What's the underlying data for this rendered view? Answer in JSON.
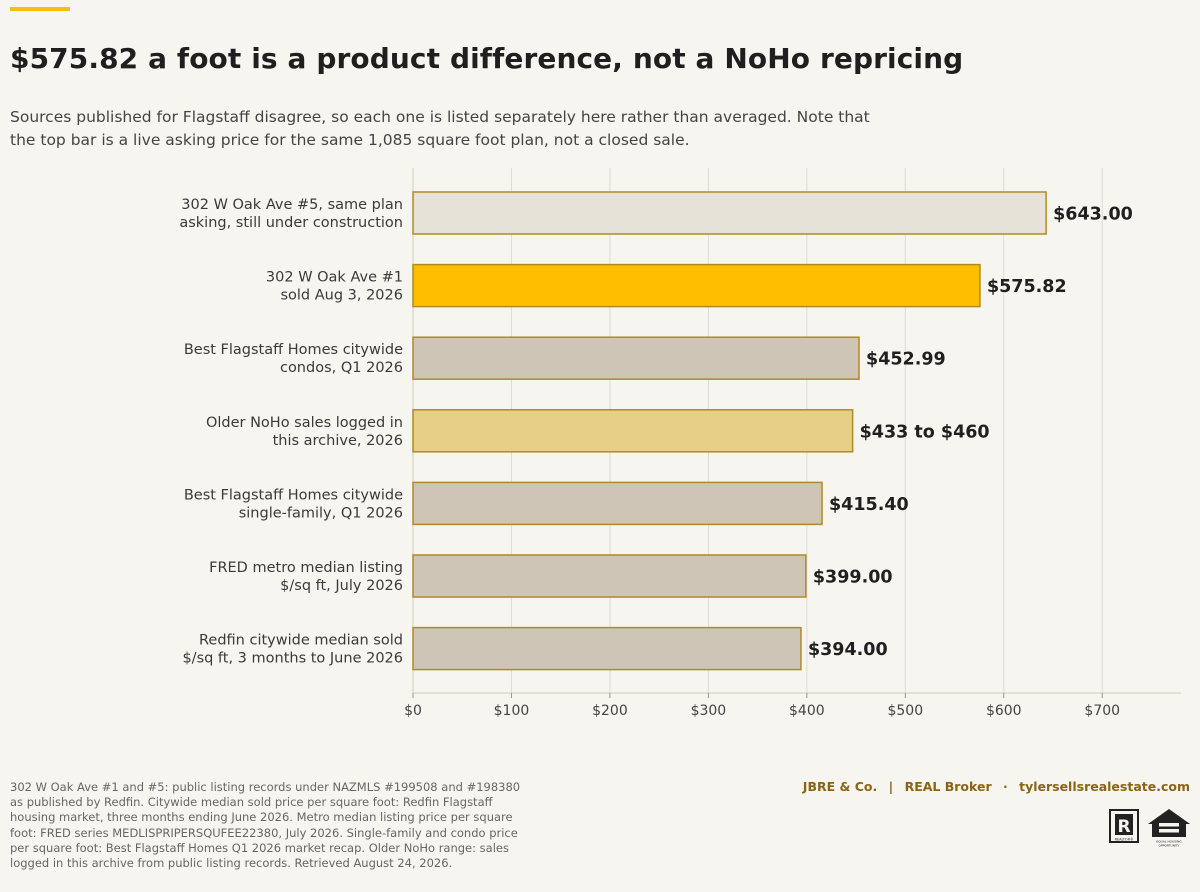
{
  "header": {
    "title": "$575.82 a foot is a product difference, not a NoHo repricing",
    "subtitle": "Sources published for Flagstaff disagree, so each one is listed separately here rather than averaged. Note that the top bar is a live asking price for the same 1,085 square foot plan, not a closed sale."
  },
  "chart_data": {
    "type": "bar",
    "orientation": "horizontal",
    "categories": [
      [
        "302 W Oak Ave #5, same plan",
        "asking, still under construction"
      ],
      [
        "302 W Oak Ave #1",
        "sold Aug 3, 2026"
      ],
      [
        "Best Flagstaff Homes citywide",
        "condos, Q1 2026"
      ],
      [
        "Older NoHo sales logged in",
        "this archive, 2026"
      ],
      [
        "Best Flagstaff Homes citywide",
        "single-family, Q1 2026"
      ],
      [
        "FRED metro median listing",
        "$/sq ft, July 2026"
      ],
      [
        "Redfin citywide median sold",
        "$/sq ft, 3 months to June 2026"
      ]
    ],
    "values": [
      643.0,
      575.82,
      452.99,
      446.5,
      415.4,
      399.0,
      394.0
    ],
    "range_low": [
      null,
      null,
      null,
      433,
      null,
      null,
      null
    ],
    "range_high": [
      null,
      null,
      null,
      460,
      null,
      null,
      null
    ],
    "value_labels": [
      "$643.00",
      "$575.82",
      "$452.99",
      "$433 to $460",
      "$415.40",
      "$399.00",
      "$394.00"
    ],
    "bar_colors": [
      "#e6e2d8",
      "#ffbe00",
      "#cec5b6",
      "#e8cf87",
      "#cec5b6",
      "#cec5b6",
      "#cec5b6"
    ],
    "bar_edge_color": "#b08a24",
    "xlim": [
      0,
      780
    ],
    "xticks": [
      0,
      100,
      200,
      300,
      400,
      500,
      600,
      700
    ],
    "xtick_labels": [
      "$0",
      "$100",
      "$200",
      "$300",
      "$400",
      "$500",
      "$600",
      "$700"
    ],
    "grid": "vertical",
    "legend": "none",
    "xlabel": "",
    "ylabel": ""
  },
  "footer": {
    "source_note": "302 W Oak Ave #1 and #5: public listing records under NAZMLS #199508 and #198380 as published by Redfin. Citywide median sold price per square foot: Redfin Flagstaff housing market, three months ending June 2026. Metro median listing price per square foot: FRED series MEDLISPRIPERSQUFEE22380, July 2026. Single-family and condo price per square foot: Best Flagstaff Homes Q1 2026 market recap. Older NoHo range: sales logged in this archive from public listing records. Retrieved August 24, 2026.",
    "brand_company": "JBRE & Co.",
    "brand_divider": "|",
    "brand_broker": "REAL Broker",
    "brand_dot": "·",
    "brand_site": "tylersellsrealestate.com",
    "realtor_logo_text": "REALTOR®",
    "equal_housing_text": "EQUAL HOUSING OPPORTUNITY"
  }
}
